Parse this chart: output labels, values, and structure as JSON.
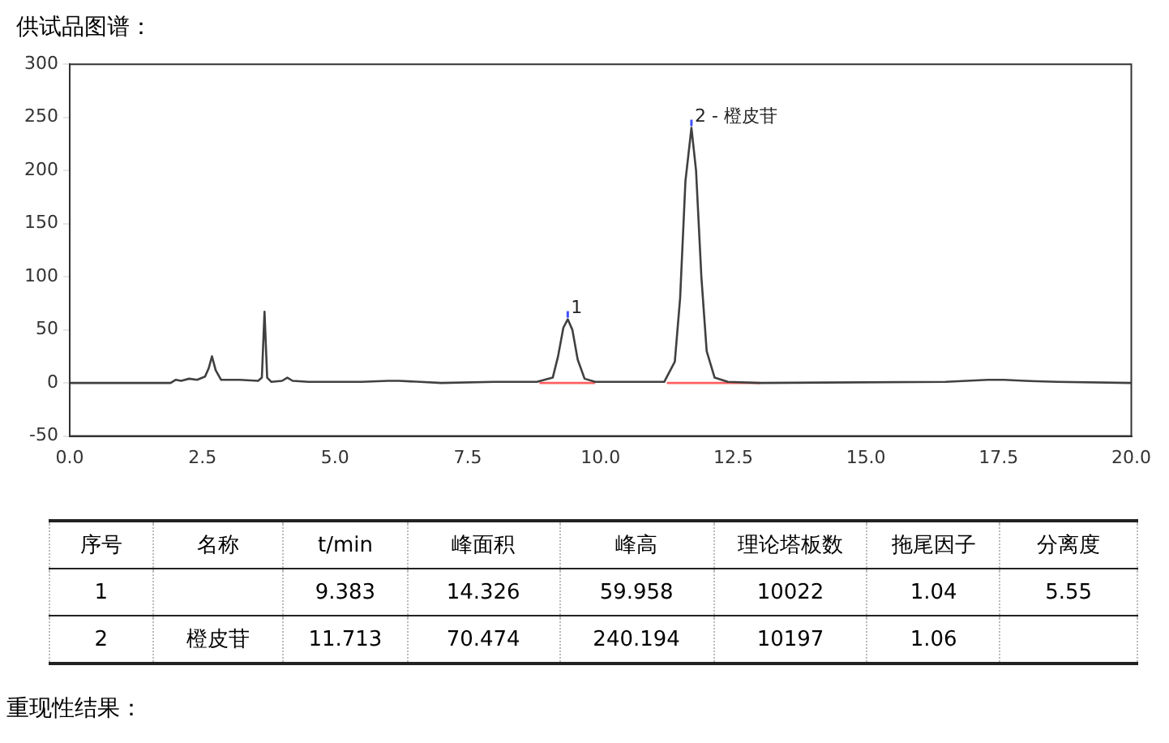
{
  "chart_data": [
    {
      "type": "line",
      "title": "供试品图谱：",
      "xlim": [
        0,
        20
      ],
      "xticks": [
        {
          "value": 0,
          "label": "0.0"
        },
        {
          "value": 2.5,
          "label": "2.5"
        },
        {
          "value": 5,
          "label": "5.0"
        },
        {
          "value": 7.5,
          "label": "7.5"
        },
        {
          "value": 10,
          "label": "10.0"
        },
        {
          "value": 12.5,
          "label": "12.5"
        },
        {
          "value": 15,
          "label": "15.0"
        },
        {
          "value": 17.5,
          "label": "17.5"
        },
        {
          "value": 20,
          "label": "20.0"
        }
      ],
      "ylim": [
        -50,
        300
      ],
      "yticks": [
        -50,
        0,
        50,
        100,
        150,
        200,
        250,
        300
      ],
      "grid": false,
      "legend": false,
      "marker": "none",
      "line_style": "solid",
      "series": [
        {
          "color": "#404040",
          "x": [
            0,
            1.9,
            2.0,
            2.1,
            2.25,
            2.4,
            2.55,
            2.62,
            2.68,
            2.75,
            2.85,
            3.2,
            3.55,
            3.62,
            3.67,
            3.72,
            3.8,
            4.0,
            4.1,
            4.2,
            4.5,
            5.5,
            6.0,
            6.2,
            6.6,
            7.0,
            8.0,
            8.8,
            9.1,
            9.2,
            9.3,
            9.383,
            9.47,
            9.57,
            9.7,
            9.9,
            10.7,
            11.2,
            11.4,
            11.5,
            11.6,
            11.713,
            11.8,
            11.9,
            12.0,
            12.15,
            12.4,
            13.0,
            16.5,
            17.3,
            17.6,
            18.0,
            18.6,
            20.0
          ],
          "values": [
            0,
            0,
            3,
            2,
            4,
            3,
            6,
            14,
            25,
            12,
            3,
            3,
            2,
            5,
            67,
            5,
            1,
            2,
            5,
            2,
            1,
            1,
            2,
            2,
            1,
            0,
            1,
            1,
            5,
            25,
            52,
            59.958,
            50,
            22,
            4,
            1,
            1,
            1,
            20,
            80,
            190,
            240.194,
            200,
            100,
            30,
            5,
            1,
            0,
            1,
            3,
            3,
            2,
            1,
            0
          ]
        },
        {
          "color": "#ff6060",
          "x": [
            8.85,
            9.9
          ],
          "values": [
            0,
            0
          ]
        },
        {
          "color": "#ff6060",
          "x": [
            11.25,
            13.0
          ],
          "values": [
            0,
            0
          ]
        }
      ],
      "annotations": [
        {
          "text": "1",
          "x": 9.383,
          "y": 59.958
        },
        {
          "text": "2 - 橙皮苷",
          "x": 11.713,
          "y": 240.194
        }
      ]
    },
    {
      "type": "other",
      "categories": [
        "序号",
        "名称",
        "t/min",
        "峰面积",
        "峰高",
        "理论塔板数",
        "拖尾因子",
        "分离度"
      ],
      "cell_labels": [
        [
          "1",
          null,
          "9.383",
          "14.326",
          "59.958",
          "10022",
          "1.04",
          "5.55"
        ],
        [
          "2",
          "橙皮苷",
          "11.713",
          "70.474",
          "240.194",
          "10197",
          "1.06",
          null
        ]
      ],
      "annotations": [
        "重现性结果："
      ]
    }
  ]
}
